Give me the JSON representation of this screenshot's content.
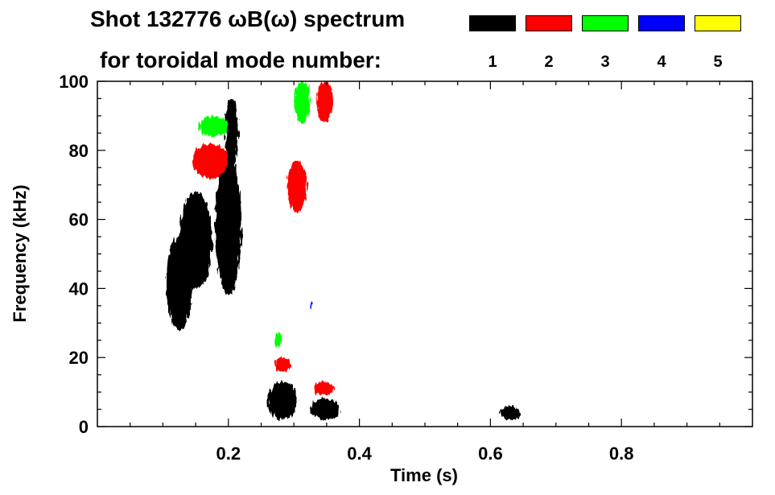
{
  "chart_data": {
    "type": "heatmap",
    "title_line1": "Shot 132776 ωB(ω) spectrum",
    "title_line2": "for toroidal mode number:",
    "xlabel": "Time (s)",
    "ylabel": "Frequency (kHz)",
    "xlim": [
      0,
      1.0
    ],
    "ylim": [
      0,
      100
    ],
    "xticks": [
      0.2,
      0.4,
      0.6,
      0.8
    ],
    "yticks": [
      0,
      20,
      40,
      60,
      80,
      100
    ],
    "legend": [
      {
        "label": "1",
        "color": "#000000"
      },
      {
        "label": "2",
        "color": "#ff0000"
      },
      {
        "label": "3",
        "color": "#00ff00"
      },
      {
        "label": "4",
        "color": "#0000ff"
      },
      {
        "label": "5",
        "color": "#ffff00"
      }
    ],
    "features": [
      {
        "mode": "1",
        "t": [
          0.125,
          0.175
        ],
        "f": [
          40,
          68
        ]
      },
      {
        "mode": "1",
        "t": [
          0.105,
          0.145
        ],
        "f": [
          28,
          55
        ]
      },
      {
        "mode": "1",
        "t": [
          0.18,
          0.22
        ],
        "f": [
          38,
          78
        ]
      },
      {
        "mode": "1",
        "t": [
          0.195,
          0.215
        ],
        "f": [
          75,
          95
        ]
      },
      {
        "mode": "1",
        "t": [
          0.26,
          0.305
        ],
        "f": [
          2,
          13
        ]
      },
      {
        "mode": "1",
        "t": [
          0.325,
          0.37
        ],
        "f": [
          2,
          8
        ]
      },
      {
        "mode": "1",
        "t": [
          0.615,
          0.645
        ],
        "f": [
          2,
          6
        ]
      },
      {
        "mode": "2",
        "t": [
          0.145,
          0.2
        ],
        "f": [
          72,
          82
        ]
      },
      {
        "mode": "2",
        "t": [
          0.29,
          0.32
        ],
        "f": [
          62,
          77
        ]
      },
      {
        "mode": "2",
        "t": [
          0.27,
          0.295
        ],
        "f": [
          16,
          20
        ]
      },
      {
        "mode": "2",
        "t": [
          0.33,
          0.36
        ],
        "f": [
          9,
          13
        ]
      },
      {
        "mode": "2",
        "t": [
          0.335,
          0.36
        ],
        "f": [
          88,
          100
        ]
      },
      {
        "mode": "3",
        "t": [
          0.155,
          0.2
        ],
        "f": [
          84,
          90
        ]
      },
      {
        "mode": "3",
        "t": [
          0.3,
          0.325
        ],
        "f": [
          88,
          100
        ]
      },
      {
        "mode": "3",
        "t": [
          0.27,
          0.28
        ],
        "f": [
          23,
          27
        ]
      },
      {
        "mode": "4",
        "t": [
          0.325,
          0.33
        ],
        "f": [
          34,
          36
        ]
      }
    ]
  }
}
